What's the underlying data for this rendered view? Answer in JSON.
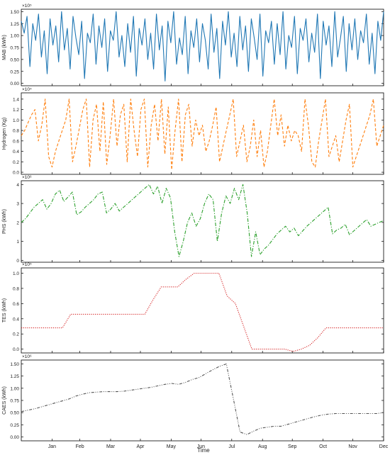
{
  "figure": {
    "xlabel": "Time"
  },
  "chart_data": [
    {
      "type": "line",
      "ylabel": "MAB (kWh)",
      "multiplier": "×10⁵",
      "ylim": [
        -0.05,
        1.55
      ],
      "yticks": [
        0.0,
        0.25,
        0.5,
        0.75,
        1.0,
        1.25,
        1.5
      ],
      "ytick_labels": [
        "0.00",
        "0.25",
        "0.50",
        "0.75",
        "1.00",
        "1.25",
        "1.50"
      ],
      "color": "#1f77b4",
      "line_style": "solid",
      "series": [
        {
          "values": [
            1.3,
            1.05,
            1.4,
            0.35,
            1.25,
            0.9,
            1.45,
            0.55,
            1.1,
            0.2,
            1.35,
            0.8,
            1.2,
            0.45,
            1.5,
            0.7,
            1.15,
            0.3,
            1.4,
            0.95,
            0.6,
            1.3,
            0.1,
            1.05,
            0.85,
            1.45,
            0.4,
            1.2,
            0.75,
            1.35,
            0.25,
            1.1,
            0.9,
            1.5,
            0.55,
            1.0,
            0.35,
            1.25,
            0.65,
            1.4,
            0.15,
            1.15,
            0.8,
            1.35,
            0.5,
            1.05,
            0.3,
            1.45,
            0.7,
            1.2,
            0.05,
            1.3,
            0.85,
            1.5,
            0.4,
            0.95,
            0.6,
            1.4,
            0.2,
            1.1,
            0.75,
            1.35,
            0.45,
            1.25,
            0.9,
            0.3,
            1.45,
            0.65,
            1.15,
            0.1,
            1.3,
            0.8,
            1.5,
            0.55,
            1.05,
            0.35,
            1.4,
            0.7,
            1.2,
            0.25,
            1.35,
            0.95,
            0.5,
            1.45,
            0.15,
            1.1,
            0.85,
            1.3,
            0.4,
            1.25,
            0.6,
            1.5,
            0.3,
            1.0,
            0.75,
            1.4,
            0.2,
            1.15,
            0.9,
            1.35,
            0.45,
            1.05,
            0.65,
            1.45,
            0.1,
            1.3,
            0.8,
            1.2,
            0.35,
            1.5,
            0.55,
            0.95,
            1.4,
            0.25,
            1.25,
            0.7,
            1.35,
            0.5,
            1.1,
            0.85,
            1.45,
            0.4,
            1.05,
            0.2,
            1.3,
            0.9,
            1.5
          ]
        }
      ]
    },
    {
      "type": "line",
      "ylabel": "Hydrogen (Kg)",
      "multiplier": "×10⁴",
      "ylim": [
        -0.04,
        1.52
      ],
      "yticks": [
        0.0,
        0.2,
        0.4,
        0.6,
        0.8,
        1.0,
        1.2,
        1.4
      ],
      "ytick_labels": [
        "0.0",
        "0.2",
        "0.4",
        "0.6",
        "0.8",
        "1.0",
        "1.2",
        "1.4"
      ],
      "color": "#ff7f0e",
      "line_style": "dashed",
      "series": [
        {
          "values": [
            0.7,
            0.8,
            0.95,
            1.1,
            1.2,
            0.6,
            0.9,
            1.4,
            0.3,
            0.1,
            0.4,
            0.6,
            0.8,
            1.0,
            1.4,
            0.2,
            0.5,
            0.85,
            1.2,
            1.4,
            0.1,
            1.0,
            1.3,
            0.4,
            1.35,
            0.15,
            0.7,
            1.4,
            0.5,
            1.1,
            1.3,
            0.2,
            1.4,
            0.8,
            0.3,
            1.2,
            1.4,
            0.1,
            0.9,
            1.3,
            0.6,
            1.4,
            0.35,
            1.25,
            0.05,
            0.8,
            1.4,
            0.2,
            1.1,
            1.3,
            0.5,
            1.0,
            0.7,
            0.9,
            0.4,
            0.6,
            0.9,
            1.25,
            0.2,
            0.5,
            0.8,
            1.1,
            1.4,
            0.3,
            0.6,
            0.9,
            0.2,
            0.5,
            1.0,
            0.3,
            0.8,
            0.1,
            0.4,
            0.9,
            1.4,
            0.7,
            1.1,
            0.5,
            0.9,
            0.6,
            0.8,
            0.7,
            0.4,
            1.4,
            0.9,
            0.2,
            0.1,
            0.6,
            1.0,
            1.4,
            0.3,
            0.5,
            0.7,
            0.2,
            0.6,
            1.0,
            1.3,
            0.1,
            0.3,
            0.5,
            0.7,
            0.9,
            1.1,
            1.4,
            0.5,
            0.7,
            0.9
          ]
        }
      ]
    },
    {
      "type": "line",
      "ylabel": "PHS (kWh)",
      "multiplier": "×10⁶",
      "ylim": [
        -0.1,
        4.2
      ],
      "yticks": [
        0,
        1,
        2,
        3,
        4
      ],
      "ytick_labels": [
        "0",
        "1",
        "2",
        "3",
        "4"
      ],
      "color": "#2ca02c",
      "line_style": "dashdot",
      "series": [
        {
          "values": [
            2.0,
            2.2,
            2.5,
            2.8,
            3.0,
            3.2,
            2.7,
            3.0,
            3.5,
            3.7,
            3.1,
            3.35,
            3.6,
            2.4,
            2.55,
            2.8,
            3.0,
            3.2,
            3.5,
            3.6,
            2.5,
            2.7,
            3.0,
            2.6,
            2.8,
            3.0,
            3.2,
            3.4,
            3.6,
            3.8,
            4.0,
            3.5,
            3.9,
            3.0,
            3.8,
            3.3,
            1.5,
            0.2,
            1.0,
            2.0,
            2.5,
            1.8,
            2.2,
            3.0,
            3.5,
            3.2,
            1.0,
            2.5,
            3.4,
            3.0,
            3.8,
            3.2,
            4.0,
            2.5,
            0.2,
            1.5,
            0.3,
            0.6,
            0.8,
            1.1,
            1.4,
            1.6,
            1.8,
            1.5,
            1.7,
            1.3,
            1.55,
            1.8,
            2.0,
            2.2,
            2.4,
            2.6,
            2.8,
            1.4,
            1.6,
            1.7,
            1.9,
            1.35,
            1.55,
            1.75,
            1.95,
            2.15,
            1.8,
            1.9,
            2.0,
            2.1
          ]
        }
      ]
    },
    {
      "type": "line",
      "ylabel": "TES (kWh)",
      "multiplier": "×10⁵",
      "ylim": [
        -0.05,
        1.07
      ],
      "yticks": [
        0.0,
        0.2,
        0.4,
        0.6,
        0.8,
        1.0
      ],
      "ytick_labels": [
        "0.0",
        "0.2",
        "0.4",
        "0.6",
        "0.8",
        "1.0"
      ],
      "color": "#d62728",
      "line_style": "dotted",
      "series": [
        {
          "values": [
            0.28,
            0.28,
            0.28,
            0.28,
            0.28,
            0.28,
            0.46,
            0.46,
            0.46,
            0.46,
            0.46,
            0.46,
            0.46,
            0.46,
            0.46,
            0.46,
            0.65,
            0.82,
            0.82,
            0.82,
            0.92,
            1.0,
            1.0,
            1.0,
            1.0,
            0.7,
            0.6,
            0.3,
            0.0,
            0.0,
            0.0,
            0.0,
            0.0,
            -0.03,
            0.0,
            0.05,
            0.15,
            0.28,
            0.28,
            0.28,
            0.28,
            0.28,
            0.28,
            0.28,
            0.28
          ]
        }
      ]
    },
    {
      "type": "line",
      "ylabel": "CAES (kWh)",
      "multiplier": "×10⁶",
      "ylim": [
        -0.08,
        1.58
      ],
      "yticks": [
        0.0,
        0.25,
        0.5,
        0.75,
        1.0,
        1.25,
        1.5
      ],
      "ytick_labels": [
        "0.00",
        "0.25",
        "0.50",
        "0.75",
        "1.00",
        "1.25",
        "1.50"
      ],
      "color": "#555555",
      "line_style": "dashdotdot",
      "series": [
        {
          "values": [
            0.52,
            0.55,
            0.58,
            0.62,
            0.66,
            0.7,
            0.74,
            0.78,
            0.84,
            0.88,
            0.91,
            0.92,
            0.93,
            0.93,
            0.93,
            0.94,
            0.96,
            0.98,
            1.0,
            1.02,
            1.05,
            1.08,
            1.1,
            1.08,
            1.12,
            1.18,
            1.22,
            1.3,
            1.38,
            1.45,
            1.5,
            0.8,
            0.1,
            0.05,
            0.12,
            0.18,
            0.2,
            0.22,
            0.22,
            0.26,
            0.3,
            0.34,
            0.38,
            0.42,
            0.45,
            0.47,
            0.48,
            0.48,
            0.48,
            0.48,
            0.48,
            0.48,
            0.48,
            0.5
          ]
        }
      ]
    }
  ],
  "x_axis": {
    "months": [
      "Jan",
      "Feb",
      "Mar",
      "Apr",
      "May",
      "Jun",
      "Jul",
      "Aug",
      "Sep",
      "Oct",
      "Nov",
      "Dec"
    ],
    "tick_days": [
      31,
      59,
      90,
      120,
      151,
      181,
      212,
      243,
      273,
      304,
      334,
      365
    ],
    "xlim_days": [
      0,
      365
    ]
  }
}
